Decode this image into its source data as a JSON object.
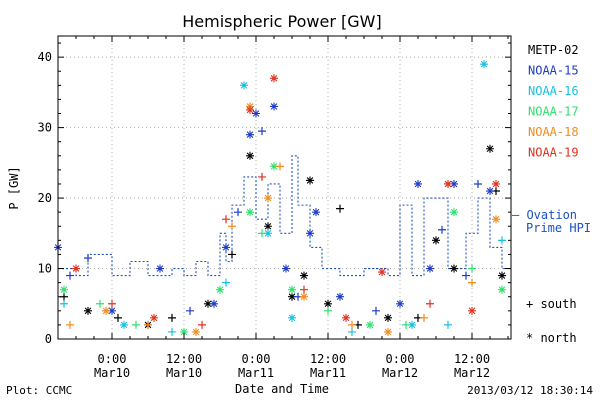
{
  "chart_data": {
    "type": "scatter",
    "title": "Hemispheric Power [GW]",
    "ylabel": "P [GW]",
    "xlabel": "Date and Time",
    "ylim": [
      0,
      43
    ],
    "xlim": [
      "2013-03-09T15:00",
      "2013-03-12T18:30"
    ],
    "y_ticks": [
      "0",
      "10",
      "20",
      "30",
      "40"
    ],
    "x_ticks": [
      {
        "time": "2013-03-10T00:00",
        "line1": "0:00",
        "line2": "Mar10"
      },
      {
        "time": "2013-03-10T12:00",
        "line1": "12:00",
        "line2": "Mar10"
      },
      {
        "time": "2013-03-11T00:00",
        "line1": "0:00",
        "line2": "Mar11"
      },
      {
        "time": "2013-03-11T12:00",
        "line1": "12:00",
        "line2": "Mar11"
      },
      {
        "time": "2013-03-12T00:00",
        "line1": "0:00",
        "line2": "Mar12"
      },
      {
        "time": "2013-03-12T12:00",
        "line1": "12:00",
        "line2": "Mar12"
      }
    ],
    "grid": true,
    "legend_position": "right",
    "markers": {
      "south": "+ south",
      "north": "* north"
    },
    "series": [
      {
        "name": "METP-02",
        "color": "#000000",
        "points": [
          [
            "2013-03-09T16:00",
            6,
            "south"
          ],
          [
            "2013-03-09T20:00",
            4,
            "north"
          ],
          [
            "2013-03-10T01:00",
            3,
            "south"
          ],
          [
            "2013-03-10T06:00",
            2,
            "north"
          ],
          [
            "2013-03-10T10:00",
            3,
            "south"
          ],
          [
            "2013-03-10T16:00",
            5,
            "north"
          ],
          [
            "2013-03-10T20:00",
            12,
            "south"
          ],
          [
            "2013-03-10T23:00",
            26,
            "north"
          ],
          [
            "2013-03-11T02:00",
            16,
            "north"
          ],
          [
            "2013-03-11T06:00",
            6,
            "north"
          ],
          [
            "2013-03-11T08:00",
            9,
            "north"
          ],
          [
            "2013-03-11T09:00",
            22.5,
            "north"
          ],
          [
            "2013-03-11T12:00",
            5,
            "north"
          ],
          [
            "2013-03-11T14:00",
            18.5,
            "south"
          ],
          [
            "2013-03-11T17:00",
            2,
            "south"
          ],
          [
            "2013-03-11T22:00",
            3,
            "north"
          ],
          [
            "2013-03-12T03:00",
            3,
            "south"
          ],
          [
            "2013-03-12T06:00",
            14,
            "north"
          ],
          [
            "2013-03-12T09:00",
            10,
            "north"
          ],
          [
            "2013-03-12T15:00",
            27,
            "north"
          ],
          [
            "2013-03-12T16:00",
            21,
            "south"
          ],
          [
            "2013-03-12T17:00",
            9,
            "north"
          ]
        ]
      },
      {
        "name": "NOAA-15",
        "color": "#1e3cc8",
        "points": [
          [
            "2013-03-09T15:00",
            13,
            "north"
          ],
          [
            "2013-03-09T17:00",
            9,
            "south"
          ],
          [
            "2013-03-09T20:00",
            11.5,
            "south"
          ],
          [
            "2013-03-10T00:00",
            4,
            "north"
          ],
          [
            "2013-03-10T08:00",
            10,
            "north"
          ],
          [
            "2013-03-10T13:00",
            4,
            "south"
          ],
          [
            "2013-03-10T17:00",
            5,
            "north"
          ],
          [
            "2013-03-10T19:00",
            13,
            "north"
          ],
          [
            "2013-03-10T21:00",
            18,
            "south"
          ],
          [
            "2013-03-10T23:00",
            29,
            "north"
          ],
          [
            "2013-03-11T00:00",
            32,
            "north"
          ],
          [
            "2013-03-11T01:00",
            29.5,
            "south"
          ],
          [
            "2013-03-11T03:00",
            33,
            "north"
          ],
          [
            "2013-03-11T05:00",
            10,
            "north"
          ],
          [
            "2013-03-11T07:00",
            6,
            "south"
          ],
          [
            "2013-03-11T09:00",
            15,
            "north"
          ],
          [
            "2013-03-11T10:00",
            18,
            "north"
          ],
          [
            "2013-03-11T14:00",
            6,
            "north"
          ],
          [
            "2013-03-11T20:00",
            4,
            "south"
          ],
          [
            "2013-03-12T00:00",
            5,
            "north"
          ],
          [
            "2013-03-12T03:00",
            22,
            "north"
          ],
          [
            "2013-03-12T05:00",
            10,
            "north"
          ],
          [
            "2013-03-12T07:00",
            15.5,
            "south"
          ],
          [
            "2013-03-12T09:00",
            22,
            "north"
          ],
          [
            "2013-03-12T11:00",
            9,
            "south"
          ],
          [
            "2013-03-12T13:00",
            22,
            "south"
          ],
          [
            "2013-03-12T15:00",
            21,
            "north"
          ]
        ]
      },
      {
        "name": "NOAA-16",
        "color": "#18c0e0",
        "points": [
          [
            "2013-03-09T16:00",
            5,
            "south"
          ],
          [
            "2013-03-10T02:00",
            2,
            "north"
          ],
          [
            "2013-03-10T10:00",
            1,
            "south"
          ],
          [
            "2013-03-10T19:00",
            8,
            "south"
          ],
          [
            "2013-03-10T22:00",
            36,
            "north"
          ],
          [
            "2013-03-11T02:00",
            15,
            "north"
          ],
          [
            "2013-03-11T06:00",
            3,
            "north"
          ],
          [
            "2013-03-11T16:00",
            1,
            "south"
          ],
          [
            "2013-03-12T02:00",
            2,
            "north"
          ],
          [
            "2013-03-12T08:00",
            2,
            "south"
          ],
          [
            "2013-03-12T14:00",
            39,
            "north"
          ],
          [
            "2013-03-12T17:00",
            14,
            "south"
          ]
        ]
      },
      {
        "name": "NOAA-17",
        "color": "#30e070",
        "points": [
          [
            "2013-03-09T16:00",
            7,
            "north"
          ],
          [
            "2013-03-09T22:00",
            5,
            "south"
          ],
          [
            "2013-03-10T04:00",
            2,
            "south"
          ],
          [
            "2013-03-10T12:00",
            1,
            "north"
          ],
          [
            "2013-03-10T18:00",
            7,
            "north"
          ],
          [
            "2013-03-10T23:00",
            18,
            "north"
          ],
          [
            "2013-03-11T01:00",
            15,
            "south"
          ],
          [
            "2013-03-11T03:00",
            24.5,
            "north"
          ],
          [
            "2013-03-11T06:00",
            7,
            "north"
          ],
          [
            "2013-03-11T12:00",
            4,
            "south"
          ],
          [
            "2013-03-11T19:00",
            2,
            "north"
          ],
          [
            "2013-03-12T01:00",
            2,
            "south"
          ],
          [
            "2013-03-12T09:00",
            18,
            "north"
          ],
          [
            "2013-03-12T12:00",
            10,
            "south"
          ],
          [
            "2013-03-12T17:00",
            7,
            "north"
          ]
        ]
      },
      {
        "name": "NOAA-18",
        "color": "#f08c20",
        "points": [
          [
            "2013-03-09T17:00",
            2,
            "south"
          ],
          [
            "2013-03-09T23:00",
            4,
            "north"
          ],
          [
            "2013-03-10T06:00",
            2,
            "south"
          ],
          [
            "2013-03-10T14:00",
            1,
            "north"
          ],
          [
            "2013-03-10T20:00",
            16,
            "south"
          ],
          [
            "2013-03-10T23:00",
            33,
            "north"
          ],
          [
            "2013-03-11T02:00",
            20,
            "north"
          ],
          [
            "2013-03-11T04:00",
            24.5,
            "south"
          ],
          [
            "2013-03-11T08:00",
            6,
            "north"
          ],
          [
            "2013-03-11T16:00",
            2,
            "south"
          ],
          [
            "2013-03-11T22:00",
            1,
            "north"
          ],
          [
            "2013-03-12T04:00",
            3,
            "south"
          ],
          [
            "2013-03-12T08:00",
            22,
            "north"
          ],
          [
            "2013-03-12T12:00",
            8,
            "south"
          ],
          [
            "2013-03-12T16:00",
            17,
            "north"
          ]
        ]
      },
      {
        "name": "NOAA-19",
        "color": "#e03020",
        "points": [
          [
            "2013-03-09T18:00",
            10,
            "north"
          ],
          [
            "2013-03-10T00:00",
            5,
            "south"
          ],
          [
            "2013-03-10T07:00",
            3,
            "north"
          ],
          [
            "2013-03-10T15:00",
            2,
            "south"
          ],
          [
            "2013-03-10T19:00",
            17,
            "south"
          ],
          [
            "2013-03-10T23:00",
            32.5,
            "north"
          ],
          [
            "2013-03-11T01:00",
            23,
            "south"
          ],
          [
            "2013-03-11T03:00",
            37,
            "north"
          ],
          [
            "2013-03-11T08:00",
            7,
            "south"
          ],
          [
            "2013-03-11T15:00",
            3,
            "north"
          ],
          [
            "2013-03-11T21:00",
            9.5,
            "north"
          ],
          [
            "2013-03-12T05:00",
            5,
            "south"
          ],
          [
            "2013-03-12T08:00",
            22,
            "north"
          ],
          [
            "2013-03-12T12:00",
            4,
            "north"
          ],
          [
            "2013-03-12T16:00",
            22,
            "north"
          ]
        ]
      }
    ],
    "ovation": {
      "name": "Ovation Prime HPI",
      "legend_line1": "— Ovation",
      "legend_line2": "Prime HPI",
      "color": "#1e50c8",
      "points": [
        [
          "2013-03-09T15:00",
          10
        ],
        [
          "2013-03-09T18:00",
          9
        ],
        [
          "2013-03-09T20:00",
          12
        ],
        [
          "2013-03-10T00:00",
          9
        ],
        [
          "2013-03-10T03:00",
          11
        ],
        [
          "2013-03-10T06:00",
          9
        ],
        [
          "2013-03-10T10:00",
          10
        ],
        [
          "2013-03-10T12:00",
          9
        ],
        [
          "2013-03-10T14:00",
          11
        ],
        [
          "2013-03-10T16:00",
          9
        ],
        [
          "2013-03-10T18:00",
          15
        ],
        [
          "2013-03-10T19:00",
          11
        ],
        [
          "2013-03-10T20:00",
          19
        ],
        [
          "2013-03-10T22:00",
          23
        ],
        [
          "2013-03-11T00:00",
          17
        ],
        [
          "2013-03-11T02:00",
          22
        ],
        [
          "2013-03-11T04:00",
          15
        ],
        [
          "2013-03-11T06:00",
          26
        ],
        [
          "2013-03-11T07:00",
          19
        ],
        [
          "2013-03-11T09:00",
          13
        ],
        [
          "2013-03-11T11:00",
          10
        ],
        [
          "2013-03-11T14:00",
          9
        ],
        [
          "2013-03-11T18:00",
          10
        ],
        [
          "2013-03-11T22:00",
          9
        ],
        [
          "2013-03-12T00:00",
          19
        ],
        [
          "2013-03-12T02:00",
          9
        ],
        [
          "2013-03-12T04:00",
          20
        ],
        [
          "2013-03-12T08:00",
          10
        ],
        [
          "2013-03-12T11:00",
          15
        ],
        [
          "2013-03-12T13:00",
          20
        ],
        [
          "2013-03-12T15:00",
          13
        ],
        [
          "2013-03-12T17:00",
          10
        ],
        [
          "2013-03-12T18:30",
          10
        ]
      ]
    }
  },
  "footer": {
    "plot_credit": "Plot: CCMC",
    "timestamp": "2013/03/12 18:30:14"
  }
}
